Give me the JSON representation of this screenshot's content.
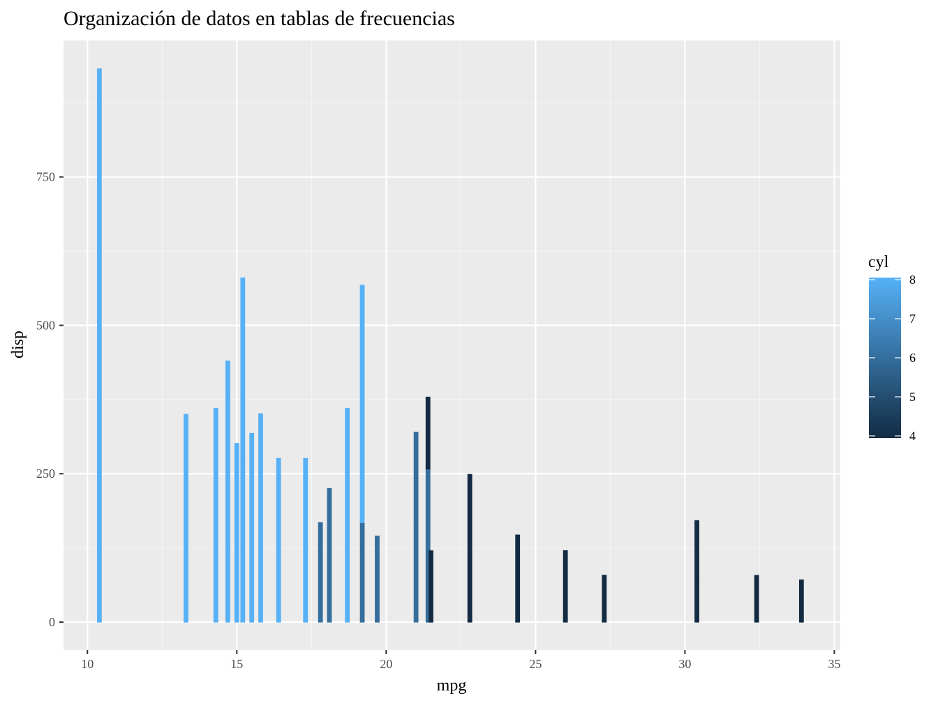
{
  "chart_data": {
    "type": "bar",
    "title": "Organización de datos en tablas de frecuencias",
    "xlabel": "mpg",
    "ylabel": "disp",
    "xlim": [
      9.2,
      35.2
    ],
    "ylim": [
      -47,
      980
    ],
    "x_ticks": [
      10,
      15,
      20,
      25,
      30,
      35
    ],
    "x_tick_labels": [
      "10",
      "15",
      "20",
      "25",
      "30",
      "35"
    ],
    "y_ticks": [
      0,
      250,
      500,
      750
    ],
    "y_tick_labels": [
      "0",
      "250",
      "500",
      "750"
    ],
    "grid": true,
    "legend": {
      "title": "cyl",
      "position": "right",
      "breaks": [
        8,
        7,
        6,
        5,
        4
      ],
      "labels": [
        "8",
        "7",
        "6",
        "5",
        "4"
      ],
      "low_color": "#132B43",
      "high_color": "#56B1F7"
    },
    "bars": [
      {
        "x": 10.4,
        "segments": [
          {
            "disp": 472,
            "cyl": 8
          },
          {
            "disp": 460,
            "cyl": 8
          }
        ]
      },
      {
        "x": 13.3,
        "segments": [
          {
            "disp": 350,
            "cyl": 8
          }
        ]
      },
      {
        "x": 14.3,
        "segments": [
          {
            "disp": 360,
            "cyl": 8
          }
        ]
      },
      {
        "x": 14.7,
        "segments": [
          {
            "disp": 440,
            "cyl": 8
          }
        ]
      },
      {
        "x": 15.0,
        "segments": [
          {
            "disp": 301,
            "cyl": 8
          }
        ]
      },
      {
        "x": 15.2,
        "segments": [
          {
            "disp": 275.8,
            "cyl": 8
          },
          {
            "disp": 304,
            "cyl": 8
          }
        ]
      },
      {
        "x": 15.5,
        "segments": [
          {
            "disp": 318,
            "cyl": 8
          }
        ]
      },
      {
        "x": 15.8,
        "segments": [
          {
            "disp": 351,
            "cyl": 8
          }
        ]
      },
      {
        "x": 16.4,
        "segments": [
          {
            "disp": 275.8,
            "cyl": 8
          }
        ]
      },
      {
        "x": 17.3,
        "segments": [
          {
            "disp": 275.8,
            "cyl": 8
          }
        ]
      },
      {
        "x": 17.8,
        "segments": [
          {
            "disp": 167.6,
            "cyl": 6
          }
        ]
      },
      {
        "x": 18.1,
        "segments": [
          {
            "disp": 225,
            "cyl": 6
          }
        ]
      },
      {
        "x": 18.7,
        "segments": [
          {
            "disp": 360,
            "cyl": 8
          }
        ]
      },
      {
        "x": 19.2,
        "segments": [
          {
            "disp": 167.6,
            "cyl": 6
          },
          {
            "disp": 400,
            "cyl": 8
          }
        ]
      },
      {
        "x": 19.7,
        "segments": [
          {
            "disp": 145,
            "cyl": 6
          }
        ]
      },
      {
        "x": 21.0,
        "segments": [
          {
            "disp": 160,
            "cyl": 6
          },
          {
            "disp": 160,
            "cyl": 6
          }
        ]
      },
      {
        "x": 21.4,
        "segments": [
          {
            "disp": 258,
            "cyl": 6
          },
          {
            "disp": 121,
            "cyl": 4
          }
        ]
      },
      {
        "x": 21.5,
        "segments": [
          {
            "disp": 120.1,
            "cyl": 4
          }
        ]
      },
      {
        "x": 22.8,
        "segments": [
          {
            "disp": 108,
            "cyl": 4
          },
          {
            "disp": 140.8,
            "cyl": 4
          }
        ]
      },
      {
        "x": 24.4,
        "segments": [
          {
            "disp": 146.7,
            "cyl": 4
          }
        ]
      },
      {
        "x": 26.0,
        "segments": [
          {
            "disp": 120.3,
            "cyl": 4
          }
        ]
      },
      {
        "x": 27.3,
        "segments": [
          {
            "disp": 79,
            "cyl": 4
          }
        ]
      },
      {
        "x": 30.4,
        "segments": [
          {
            "disp": 75.7,
            "cyl": 4
          },
          {
            "disp": 95.1,
            "cyl": 4
          }
        ]
      },
      {
        "x": 32.4,
        "segments": [
          {
            "disp": 78.7,
            "cyl": 4
          }
        ]
      },
      {
        "x": 33.9,
        "segments": [
          {
            "disp": 71.1,
            "cyl": 4
          }
        ]
      }
    ]
  },
  "colors": {
    "panel_background": "#EBEBEB",
    "grid_major": "#FFFFFF",
    "grid_minor": "#F5F5F5",
    "tick": "#333333"
  }
}
